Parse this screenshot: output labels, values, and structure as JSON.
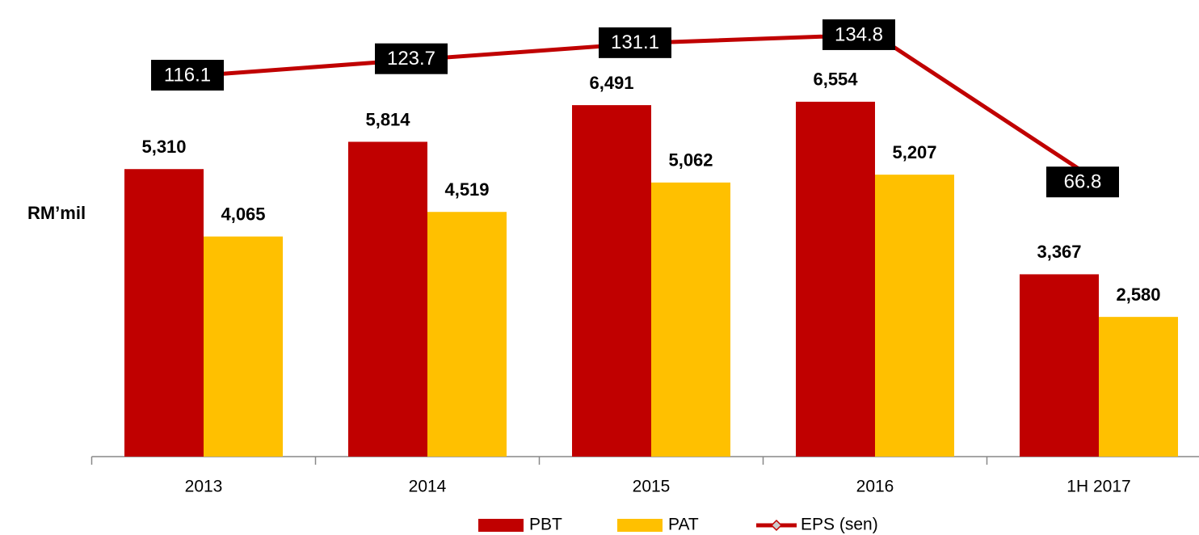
{
  "chart_data": {
    "type": "bar",
    "ylabel": "RM’mil",
    "categories": [
      "2013",
      "2014",
      "2015",
      "2016",
      "1H 2017"
    ],
    "ylim": [
      0,
      8000
    ],
    "y2lim": [
      -60,
      140
    ],
    "legend": "bottom",
    "series": [
      {
        "name": "PBT",
        "color": "#c00000",
        "values": [
          5310,
          5814,
          6491,
          6554,
          3367
        ],
        "value_labels": [
          "5,310",
          "5,814",
          "6,491",
          "6,554",
          "3,367"
        ]
      },
      {
        "name": "PAT",
        "color": "#ffc000",
        "values": [
          4065,
          4519,
          5062,
          5207,
          2580
        ],
        "value_labels": [
          "4,065",
          "4,519",
          "5,062",
          "5,207",
          "2,580"
        ]
      },
      {
        "name": "EPS (sen)",
        "type": "line",
        "axis": "y2",
        "color": "#c00000",
        "values": [
          116.1,
          123.7,
          131.1,
          134.8,
          66.8
        ]
      }
    ]
  }
}
